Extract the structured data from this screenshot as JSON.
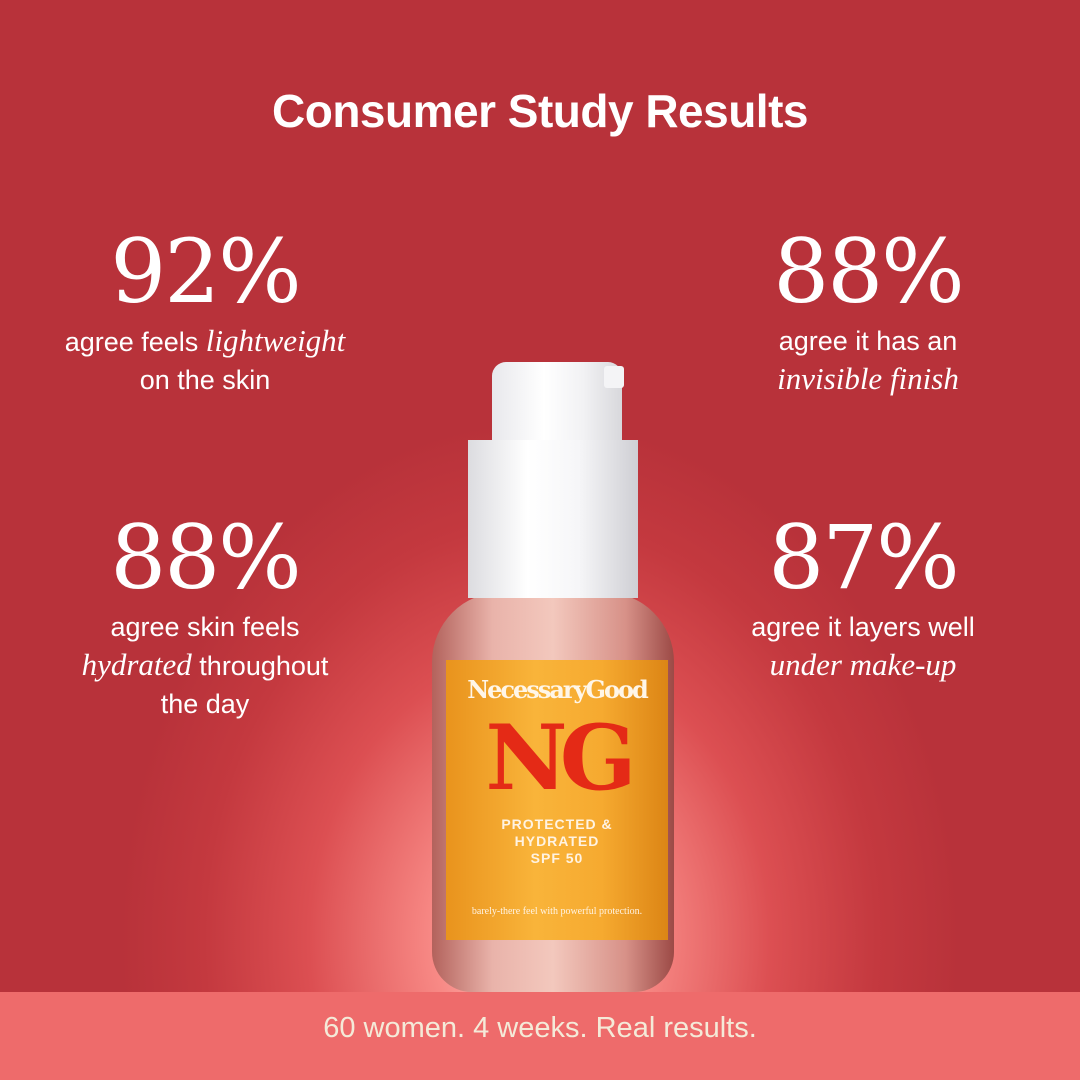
{
  "title": "Consumer Study Results",
  "stats": [
    {
      "value": "92%",
      "line1": "agree feels ",
      "italic": "lightweight",
      "line2": "on the skin"
    },
    {
      "value": "88%",
      "line1": "agree it has an",
      "italic": "invisible finish"
    },
    {
      "value": "88%",
      "line1": "agree skin feels",
      "italic": "hydrated",
      "line2": " throughout",
      "line3": "the day"
    },
    {
      "value": "87%",
      "line1": "agree it layers well",
      "italic": "under make-up"
    }
  ],
  "footer": "60 women. 4 weeks. Real results.",
  "product": {
    "brand": "NecessaryGood",
    "monogram": "NG",
    "tagline": [
      "PROTECTED &",
      "HYDRATED",
      "SPF 50"
    ],
    "small_print": "barely-there feel with powerful protection."
  },
  "colors": {
    "background": "#c4393f",
    "floor": "#ee6b6b",
    "label": "#f6aa30",
    "monogram": "#e42a16"
  }
}
